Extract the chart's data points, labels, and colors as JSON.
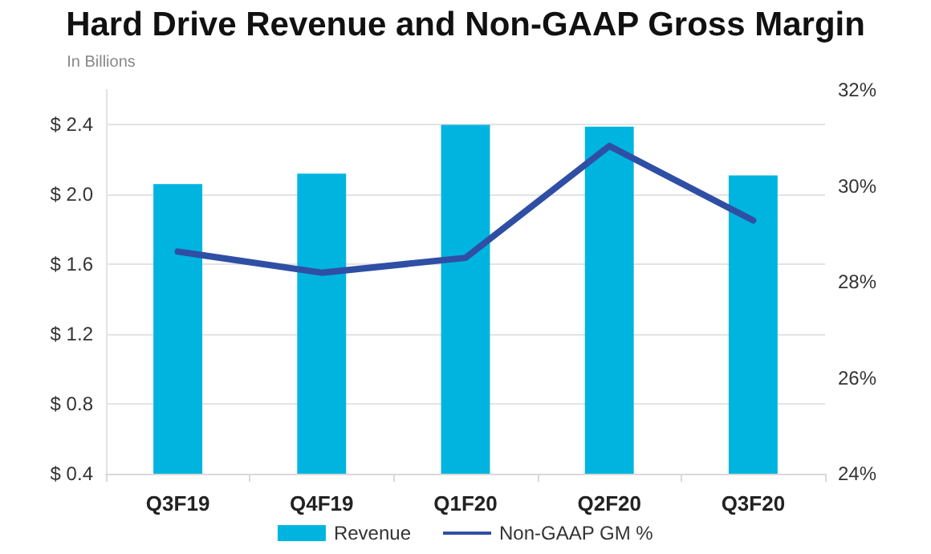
{
  "chart_data": {
    "type": "bar",
    "title": "Hard Drive Revenue and Non-GAAP Gross Margin",
    "ylabel": "In Billions",
    "categories": [
      "Q3F19",
      "Q4F19",
      "Q1F20",
      "Q2F20",
      "Q3F20"
    ],
    "series": [
      {
        "name": "Revenue",
        "color": "#00b4e0",
        "values": [
          2.06,
          2.12,
          2.4,
          2.39,
          2.11
        ]
      },
      {
        "name": "Non-GAAP GM %",
        "type": "line",
        "axis": "y2",
        "color": "#2f4fa5",
        "values": [
          28.63,
          28.19,
          28.5,
          30.83,
          29.28
        ]
      }
    ],
    "ylim": [
      0.4,
      2.6
    ],
    "yticks": [
      {
        "value": 0.4,
        "label": "$ 0.4"
      },
      {
        "value": 0.8,
        "label": "$ 0.8"
      },
      {
        "value": 1.2,
        "label": "$ 1.2"
      },
      {
        "value": 1.6,
        "label": "$ 1.6"
      },
      {
        "value": 2.0,
        "label": "$ 2.0"
      },
      {
        "value": 2.4,
        "label": "$ 2.4"
      }
    ],
    "y2lim": [
      24,
      32
    ],
    "y2ticks": [
      {
        "value": 24,
        "label": "24%"
      },
      {
        "value": 26,
        "label": "26%"
      },
      {
        "value": 28,
        "label": "28%"
      },
      {
        "value": 30,
        "label": "30%"
      },
      {
        "value": 32,
        "label": "32%"
      }
    ],
    "grid": "y",
    "legend": "bottom",
    "marker": "none",
    "line_style": "solid"
  }
}
